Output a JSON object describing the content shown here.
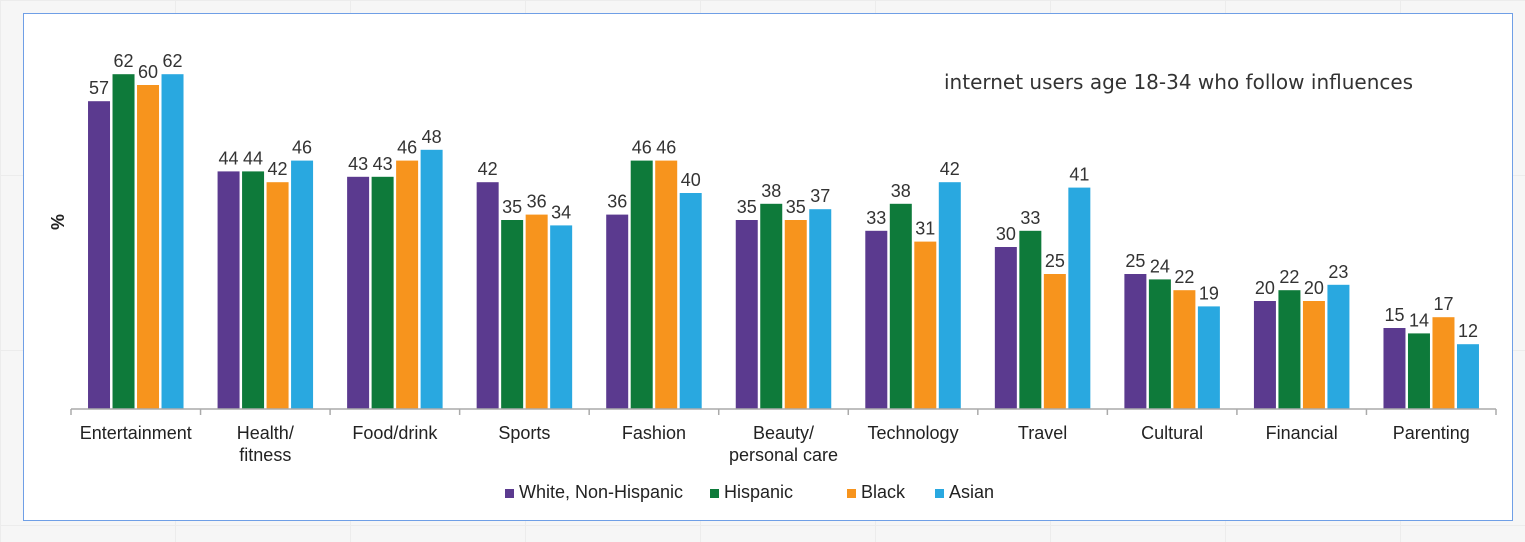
{
  "annotation": "internet users age 18-34 who follow influences",
  "chart_data": {
    "type": "bar",
    "ylabel": "%",
    "ylim": [
      0,
      65
    ],
    "legend_position": "bottom",
    "categories": [
      "Entertainment",
      "Health/\nfitness",
      "Food/drink",
      "Sports",
      "Fashion",
      "Beauty/\npersonal care",
      "Technology",
      "Travel",
      "Cultural",
      "Financial",
      "Parenting"
    ],
    "series": [
      {
        "name": "White, Non-Hispanic",
        "color": "#5b3a8f",
        "values": [
          57,
          44,
          43,
          42,
          36,
          35,
          33,
          30,
          25,
          20,
          15
        ]
      },
      {
        "name": "Hispanic",
        "color": "#0e7a3a",
        "values": [
          62,
          44,
          43,
          35,
          46,
          38,
          38,
          33,
          24,
          22,
          14
        ]
      },
      {
        "name": "Black",
        "color": "#f7941d",
        "values": [
          60,
          42,
          46,
          36,
          46,
          35,
          31,
          25,
          22,
          20,
          17
        ]
      },
      {
        "name": "Asian",
        "color": "#29a8e0",
        "values": [
          62,
          46,
          48,
          34,
          40,
          37,
          42,
          41,
          19,
          23,
          12
        ]
      }
    ]
  }
}
